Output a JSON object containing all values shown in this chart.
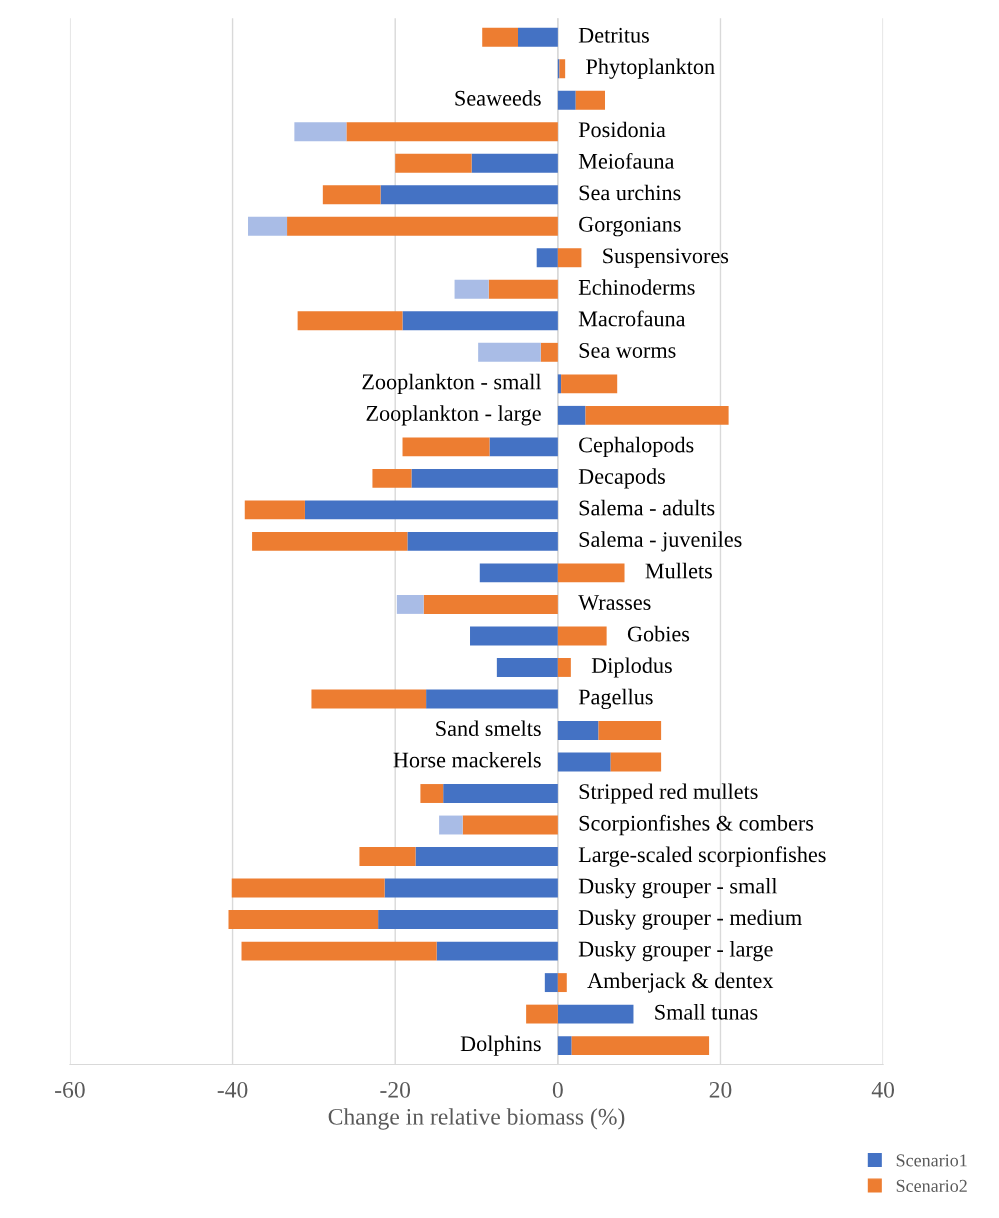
{
  "chart_data": {
    "type": "bar",
    "orientation": "horizontal",
    "stacked": true,
    "xlabel": "Change in relative biomass (%)",
    "categories": [
      "Detritus",
      "Phytoplankton",
      "Seaweeds",
      "Posidonia",
      "Meiofauna",
      "Sea urchins",
      "Gorgonians",
      "Suspensivores",
      "Echinoderms",
      "Macrofauna",
      "Sea worms",
      "Zooplankton - small",
      "Zooplankton - large",
      "Cephalopods",
      "Decapods",
      "Salema - adults",
      "Salema - juveniles",
      "Mullets",
      "Wrasses",
      "Gobies",
      "Diplodus",
      "Pagellus",
      "Sand smelts",
      "Horse mackerels",
      "Stripped red mullets",
      "Scorpionfishes & combers",
      "Large-scaled scorpionfishes",
      "Dusky grouper - small",
      "Dusky grouper - medium",
      "Dusky grouper - large",
      "Amberjack & dentex",
      "Small tunas",
      "Dolphins"
    ],
    "series": [
      {
        "name": "Scenario1",
        "color": "#4472c4",
        "values": [
          -4.9,
          0.2,
          2.2,
          0,
          -10.6,
          -21.8,
          0,
          -2.6,
          0,
          -19.1,
          0,
          0.4,
          3.4,
          -8.4,
          -18,
          -31.1,
          -18.5,
          -9.6,
          0,
          -10.8,
          -7.5,
          -16.2,
          5.0,
          6.5,
          -14.1,
          0,
          -17.5,
          -21.3,
          -22.1,
          -14.9,
          -1.6,
          9.3,
          1.7
        ]
      },
      {
        "name": "Scenario2",
        "color": "#ed7d31",
        "values": [
          -4.4,
          0.7,
          3.6,
          -26,
          -9.4,
          -7.1,
          -33.3,
          2.9,
          -8.5,
          -12.9,
          -2.1,
          6.9,
          17.6,
          -10.7,
          -4.8,
          -7.4,
          -19.1,
          8.2,
          -16.5,
          6.0,
          1.6,
          -14.1,
          7.7,
          6.2,
          -2.8,
          -11.7,
          -6.9,
          -18.8,
          -18.4,
          -24,
          1.1,
          -3.9,
          16.9
        ]
      },
      {
        "color": "#a9bce6",
        "values": [
          null,
          null,
          null,
          -6.4,
          null,
          null,
          -4.8,
          null,
          -4.2,
          null,
          -7.7,
          null,
          null,
          null,
          null,
          null,
          null,
          null,
          -3.3,
          null,
          null,
          null,
          null,
          null,
          null,
          -2.9,
          null,
          null,
          null,
          null,
          null,
          null,
          null
        ]
      }
    ],
    "xlim": [
      -60,
      40
    ],
    "xticks": [
      -60,
      -40,
      -20,
      0,
      20,
      40
    ],
    "grid": "x",
    "legend": "bottom right",
    "tick_labels": "x"
  }
}
